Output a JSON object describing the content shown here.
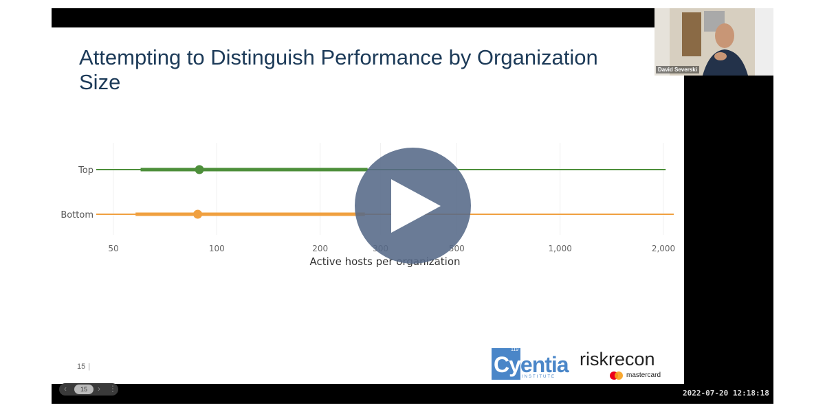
{
  "slide": {
    "title": "Attempting to Distinguish Performance by Organization Size",
    "page_number": "15",
    "separator": "|"
  },
  "chart_data": {
    "type": "scatter",
    "x_scale": "log",
    "xlabel": "Active hosts per organization",
    "x_ticks": [
      50,
      100,
      200,
      300,
      500,
      1000,
      2000
    ],
    "x_tick_labels": [
      "50",
      "100",
      "200",
      "300",
      "500",
      "1,000",
      "2,000"
    ],
    "xlim": [
      45,
      2100
    ],
    "categories": [
      "Top",
      "Bottom"
    ],
    "series": [
      {
        "name": "Top",
        "color": "#4d8f3a",
        "thin_range": [
          42,
          2030
        ],
        "thick_range": [
          60,
          275
        ],
        "point": 89
      },
      {
        "name": "Bottom",
        "color": "#f0a040",
        "thin_range": [
          40,
          2180
        ],
        "thick_range": [
          58,
          270
        ],
        "point": 88
      }
    ]
  },
  "logos": {
    "cyentia_box": "Cy",
    "cyentia_rest": "entia",
    "cyentia_sup": "119",
    "cyentia_sub": "INSTITUTE",
    "riskrecon": "riskrecon",
    "mastercard": "mastercard"
  },
  "webcam": {
    "name": "David Severski"
  },
  "nav": {
    "prev": "‹",
    "page": "15",
    "next": "›",
    "more": "⋮"
  },
  "timestamp": "2022-07-20 12:18:18",
  "player": {
    "play_icon": "play-icon"
  }
}
